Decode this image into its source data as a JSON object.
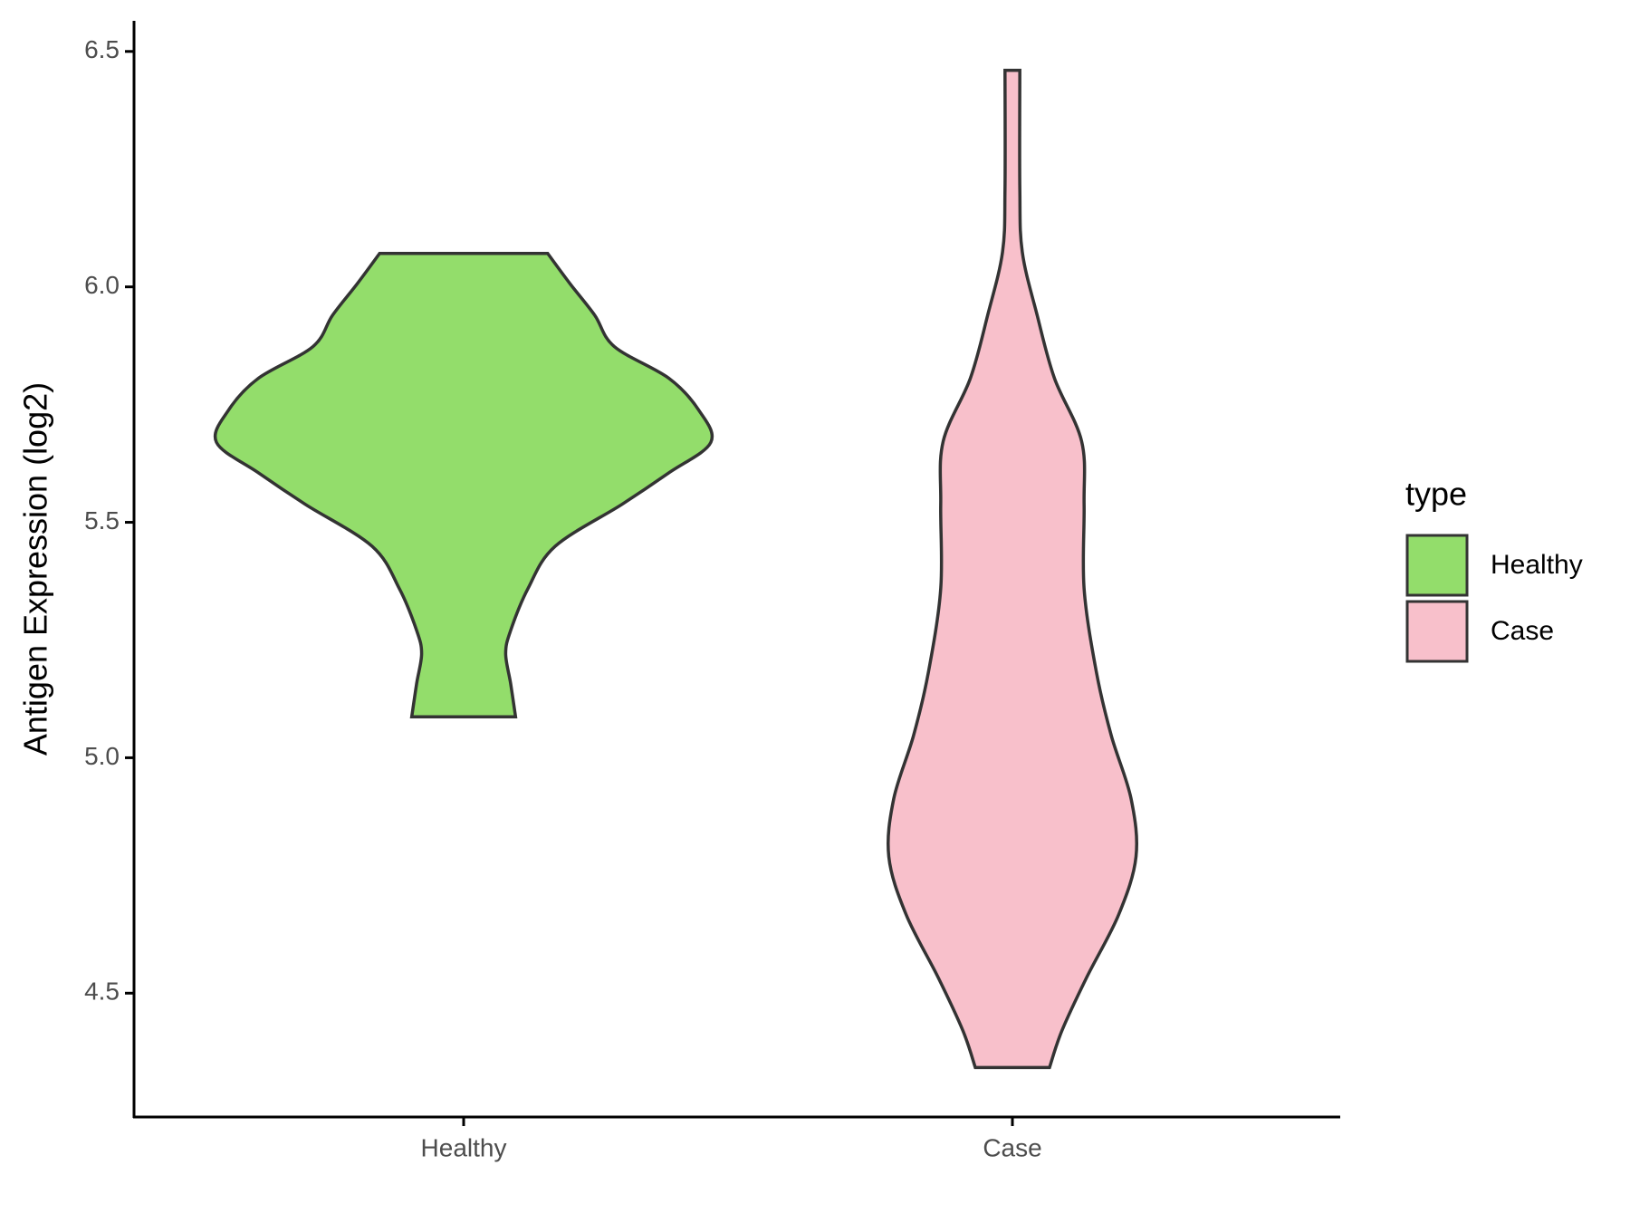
{
  "chart_data": {
    "type": "violin",
    "y_label": "Antigen Expression (log2)",
    "categories": [
      "Healthy",
      "Case"
    ],
    "ylim": [
      4.237,
      6.565
    ],
    "yticks": [
      {
        "value": 4.5,
        "label": "4.5"
      },
      {
        "value": 5,
        "label": "5.0"
      },
      {
        "value": 5.5,
        "label": "5.5"
      },
      {
        "value": 6,
        "label": "6.0"
      },
      {
        "value": 6.5,
        "label": "6.5"
      }
    ],
    "legend_title": "type",
    "legend_position": "right",
    "series": [
      {
        "name": "Healthy",
        "color": "#93dd6b",
        "y": [
          5.087,
          5.158,
          5.221,
          5.27,
          5.359,
          5.449,
          5.538,
          5.605,
          5.67,
          5.739,
          5.806,
          5.873,
          5.94,
          6.007,
          6.071
        ],
        "density": [
          0.21,
          0.19,
          0.17,
          0.19,
          0.26,
          0.37,
          0.64,
          0.83,
          1.0,
          0.95,
          0.83,
          0.61,
          0.53,
          0.43,
          0.34
        ]
      },
      {
        "name": "Case",
        "color": "#f8c0cb",
        "y": [
          4.342,
          4.42,
          4.533,
          4.667,
          4.79,
          4.913,
          5.047,
          5.181,
          5.359,
          5.538,
          5.672,
          5.806,
          5.94,
          6.074,
          6.208,
          6.46
        ],
        "density": [
          0.15,
          0.2,
          0.3,
          0.43,
          0.5,
          0.48,
          0.4,
          0.34,
          0.29,
          0.29,
          0.28,
          0.17,
          0.1,
          0.04,
          0.03,
          0.03
        ]
      }
    ]
  }
}
